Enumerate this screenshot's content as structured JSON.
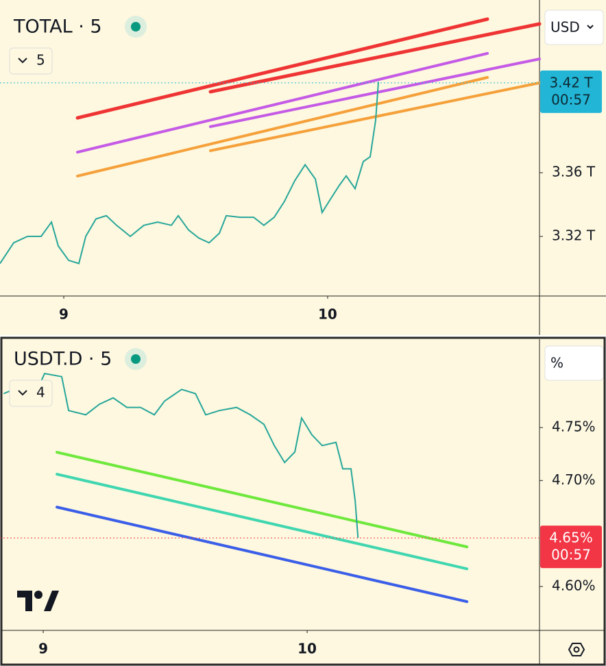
{
  "chart_data": [
    {
      "type": "line",
      "title": "TOTAL · 5",
      "indicators": "5",
      "currency": "USD",
      "x": [
        -5.8,
        -4.55,
        -3.3,
        -2.06,
        -1.12,
        -0.5,
        0.44,
        1.37,
        2.0,
        2.93,
        3.87,
        4.8,
        6.05,
        7.29,
        8.54,
        9.79,
        10.41,
        11.35,
        12.28,
        13.22,
        14.15,
        14.78,
        16.02,
        17.27,
        18.2,
        19.14,
        20.07,
        21.01,
        21.95,
        22.88,
        23.5,
        24.13,
        25.06,
        25.69,
        26.5,
        27.24,
        27.87,
        28.37,
        28.62
      ],
      "series": [
        {
          "color": "#26a69a",
          "values": [
            3.303,
            3.316,
            3.32,
            3.32,
            3.329,
            3.314,
            3.305,
            3.303,
            3.32,
            3.331,
            3.333,
            3.327,
            3.32,
            3.327,
            3.329,
            3.327,
            3.333,
            3.324,
            3.319,
            3.316,
            3.322,
            3.333,
            3.332,
            3.332,
            3.327,
            3.332,
            3.342,
            3.355,
            3.365,
            3.356,
            3.335,
            3.342,
            3.352,
            3.358,
            3.35,
            3.367,
            3.37,
            3.393,
            3.417
          ]
        }
      ],
      "xlim": [
        -5.8,
        43.27
      ],
      "ylim": [
        3.2826,
        3.4684
      ],
      "xticks": [
        {
          "value": 0,
          "label": "9"
        },
        {
          "value": 24,
          "label": "10"
        }
      ],
      "yticks": [
        {
          "value": 3.32,
          "label": "3.32 T"
        },
        {
          "value": 3.36,
          "label": "3.36 T"
        }
      ],
      "last_value": {
        "value": 3.4164,
        "label": "3.42 T",
        "color": "#22b5d6"
      },
      "countdown": "00:57",
      "drawings": [
        {
          "color": "#ef3434",
          "x": [
            1.25,
            38.53
          ],
          "y": [
            3.3944,
            3.4564
          ]
        },
        {
          "color": "#ef3434",
          "x": [
            13.34,
            43.27
          ],
          "y": [
            3.4108,
            3.4534
          ]
        },
        {
          "color": "#c45ae6",
          "x": [
            1.25,
            38.53
          ],
          "y": [
            3.3729,
            3.4349
          ]
        },
        {
          "color": "#c45ae6",
          "x": [
            13.34,
            43.27
          ],
          "y": [
            3.3889,
            3.4314
          ]
        },
        {
          "color": "#f5a03a",
          "x": [
            1.25,
            38.53
          ],
          "y": [
            3.3579,
            3.4198
          ]
        },
        {
          "color": "#f5a03a",
          "x": [
            13.34,
            43.27
          ],
          "y": [
            3.3738,
            3.4164
          ]
        }
      ]
    },
    {
      "type": "line",
      "title": "USDT.D · 5",
      "indicators": "4",
      "currency": "%",
      "x": [
        -3.6,
        -2.68,
        -1.12,
        0.12,
        1.68,
        2.31,
        3.87,
        5.11,
        6.36,
        7.61,
        8.85,
        10.1,
        11.04,
        12.59,
        13.84,
        14.78,
        16.02,
        17.58,
        18.83,
        20.07,
        21.01,
        21.95,
        22.88,
        23.5,
        24.44,
        25.37,
        26.62,
        27.24,
        27.99,
        28.37,
        28.62
      ],
      "series": [
        {
          "color": "#26a69a",
          "values": [
            4.782,
            4.786,
            4.772,
            4.801,
            4.798,
            4.766,
            4.762,
            4.772,
            4.778,
            4.769,
            4.769,
            4.762,
            4.775,
            4.786,
            4.782,
            4.762,
            4.766,
            4.769,
            4.762,
            4.753,
            4.733,
            4.717,
            4.727,
            4.759,
            4.743,
            4.733,
            4.736,
            4.711,
            4.711,
            4.681,
            4.646
          ]
        }
      ],
      "xlim": [
        -3.93,
        45.13
      ],
      "ylim": [
        4.5586,
        4.8334
      ],
      "xticks": [
        {
          "value": 0,
          "label": "9"
        },
        {
          "value": 24,
          "label": "10"
        }
      ],
      "yticks": [
        {
          "value": 4.6,
          "label": "4.60%"
        },
        {
          "value": 4.7,
          "label": "4.70%"
        },
        {
          "value": 4.75,
          "label": "4.75%"
        }
      ],
      "last_value": {
        "value": 4.6458,
        "label": "4.65%",
        "color": "#f23645"
      },
      "countdown": "00:57",
      "drawings": [
        {
          "color": "#6ee83c",
          "x": [
            1.25,
            38.53
          ],
          "y": [
            4.7267,
            4.6374
          ]
        },
        {
          "color": "#3fd6b0",
          "x": [
            1.25,
            38.53
          ],
          "y": [
            4.706,
            4.6167
          ]
        },
        {
          "color": "#3a5ee8",
          "x": [
            1.25,
            38.53
          ],
          "y": [
            4.6749,
            4.5857
          ]
        }
      ]
    }
  ]
}
